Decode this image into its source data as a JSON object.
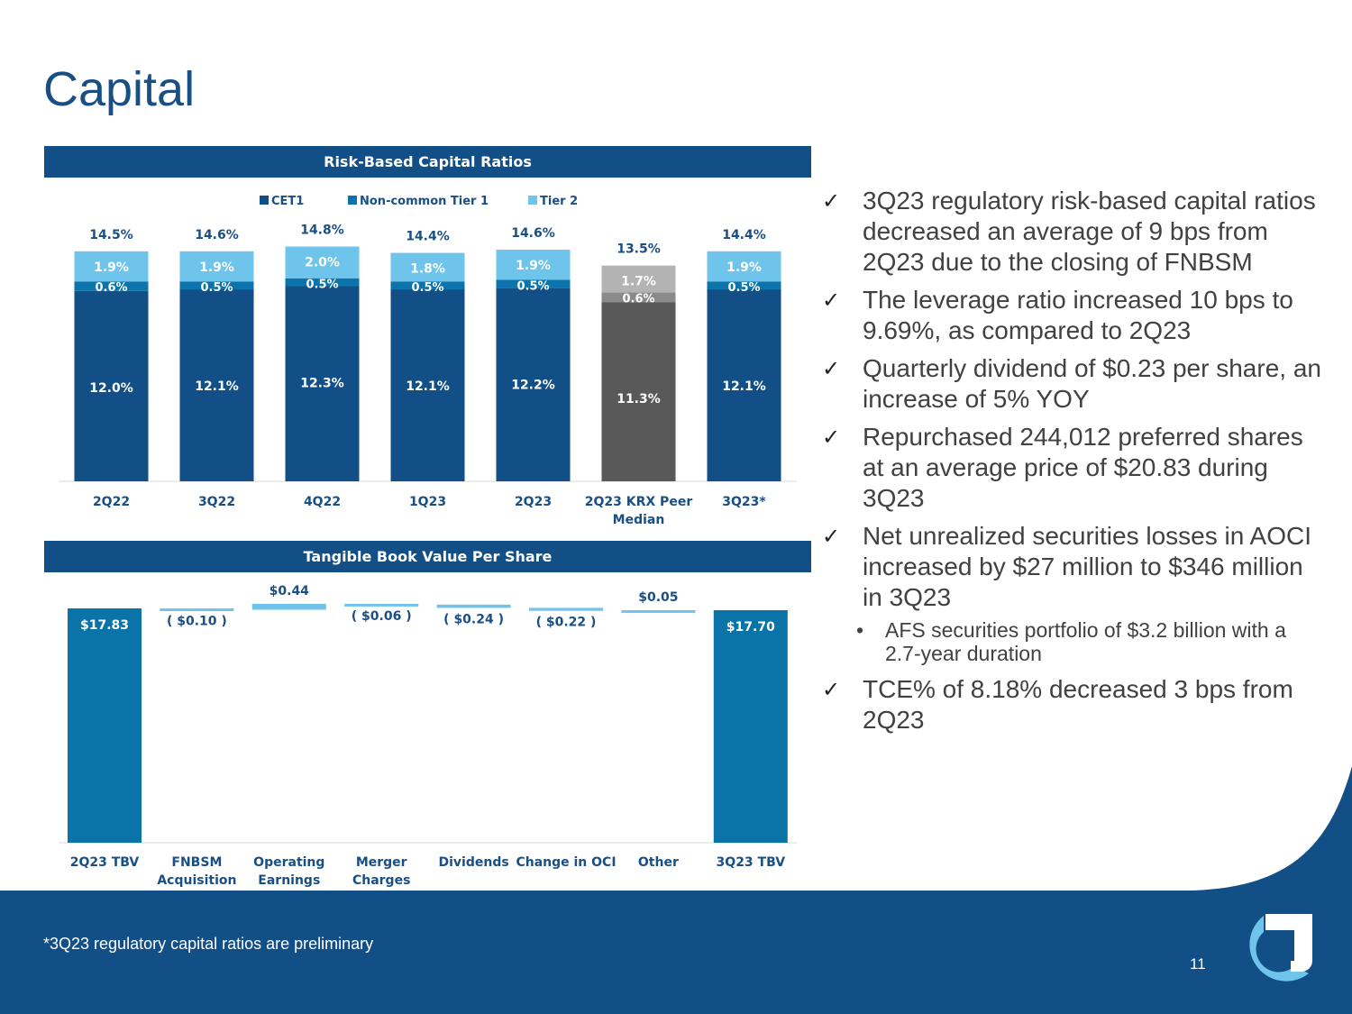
{
  "title": "Capital",
  "colors": {
    "cet1": "#124f87",
    "non_common_tier1": "#0b74ad",
    "tier2": "#6ec4ea",
    "peer_cet1": "#595959",
    "peer_non_common": "#8a8a8a",
    "peer_tier2": "#b3b3b3",
    "tbv_total": "#0a74a8",
    "tbv_change": "#6ec4ea",
    "label_dark": "#1a4f86"
  },
  "risk_chart": {
    "header": "Risk-Based Capital Ratios",
    "chart_data": {
      "type": "bar",
      "stacked": true,
      "title": "Risk-Based Capital Ratios",
      "categories": [
        "2Q22",
        "3Q22",
        "4Q22",
        "1Q23",
        "2Q23",
        "2Q23 KRX Peer Median",
        "3Q23*"
      ],
      "category_lines": [
        [
          "2Q22"
        ],
        [
          "3Q22"
        ],
        [
          "4Q22"
        ],
        [
          "1Q23"
        ],
        [
          "2Q23"
        ],
        [
          "2Q23 KRX Peer",
          "Median"
        ],
        [
          "3Q23*"
        ]
      ],
      "series": [
        {
          "name": "CET1",
          "values": [
            12.0,
            12.1,
            12.3,
            12.1,
            12.2,
            11.3,
            12.1
          ],
          "labels": [
            "12.0%",
            "12.1%",
            "12.3%",
            "12.1%",
            "12.2%",
            "11.3%",
            "12.1%"
          ]
        },
        {
          "name": "Non-common Tier 1",
          "values": [
            0.6,
            0.5,
            0.5,
            0.5,
            0.5,
            0.6,
            0.5
          ],
          "labels": [
            "0.6%",
            "0.5%",
            "0.5%",
            "0.5%",
            "0.5%",
            "0.6%",
            "0.5%"
          ]
        },
        {
          "name": "Tier 2",
          "values": [
            1.9,
            1.9,
            2.0,
            1.8,
            1.9,
            1.7,
            1.9
          ],
          "labels": [
            "1.9%",
            "1.9%",
            "2.0%",
            "1.8%",
            "1.9%",
            "1.7%",
            "1.9%"
          ]
        }
      ],
      "totals": [
        14.5,
        14.6,
        14.8,
        14.4,
        14.6,
        13.5,
        14.4
      ],
      "total_labels": [
        "14.5%",
        "14.6%",
        "14.8%",
        "14.4%",
        "14.6%",
        "13.5%",
        "14.4%"
      ],
      "highlight_index": 5,
      "legend_position": "top-center",
      "ylim": [
        0,
        16
      ]
    }
  },
  "tbv_chart": {
    "header": "Tangible Book Value Per Share",
    "chart_data": {
      "type": "waterfall",
      "title": "Tangible Book Value Per Share",
      "categories": [
        "2Q23 TBV",
        "FNBSM Acquisition",
        "Operating Earnings",
        "Merger Charges",
        "Dividends",
        "Change in OCI",
        "Other",
        "3Q23 TBV"
      ],
      "category_lines": [
        [
          "2Q23 TBV"
        ],
        [
          "FNBSM",
          "Acquisition"
        ],
        [
          "Operating",
          "Earnings"
        ],
        [
          "Merger",
          "Charges"
        ],
        [
          "Dividends"
        ],
        [
          "Change in OCI"
        ],
        [
          "Other"
        ],
        [
          "3Q23 TBV"
        ]
      ],
      "values": [
        17.83,
        -0.1,
        0.44,
        -0.06,
        -0.24,
        -0.22,
        0.05,
        17.7
      ],
      "labels": [
        "$17.83",
        "( $0.10 )",
        "$0.44",
        "( $0.06 )",
        "( $0.24 )",
        "( $0.22 )",
        "$0.05",
        "$17.70"
      ],
      "is_total": [
        true,
        false,
        false,
        false,
        false,
        false,
        false,
        true
      ]
    }
  },
  "bullets": [
    "3Q23 regulatory risk-based capital ratios decreased an average of 9 bps from 2Q23 due to the closing of FNBSM",
    "The leverage ratio increased 10 bps to 9.69%, as compared to 2Q23",
    "Quarterly dividend of $0.23 per share, an increase of 5% YOY",
    "Repurchased 244,012 preferred shares at an average price of $20.83 during 3Q23",
    "Net unrealized securities losses in AOCI increased by $27 million to $346 million in 3Q23"
  ],
  "sub_bullet": "AFS securities portfolio of $3.2 billion with a 2.7-year duration",
  "last_bullet": "TCE% of 8.18% decreased 3 bps from 2Q23",
  "check_glyph": "✓",
  "dot_glyph": "•",
  "footnote": "*3Q23 regulatory capital ratios are preliminary",
  "page_number": "11"
}
